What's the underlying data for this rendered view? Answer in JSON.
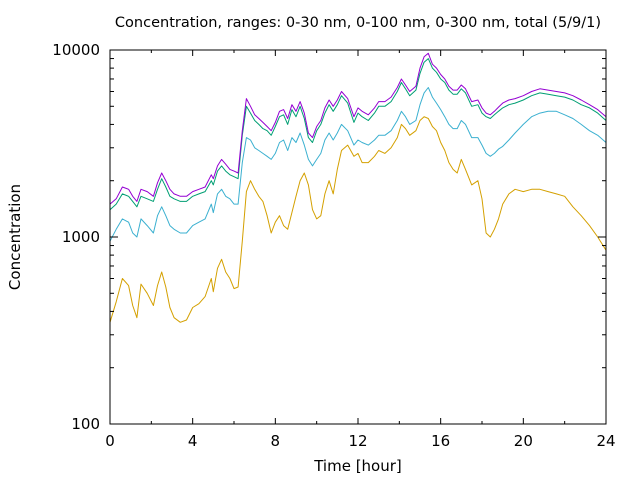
{
  "chart_data": {
    "type": "line",
    "title": "Concentration, ranges: 0-30 nm, 0-100 nm, 0-300 nm, total (5/9/1)",
    "xlabel": "Time [hour]",
    "ylabel": "Concentration",
    "xlim": [
      0,
      24
    ],
    "ylim": [
      100,
      10000
    ],
    "yscale": "log",
    "grid": false,
    "legend": "none",
    "x_ticks": [
      0,
      4,
      8,
      12,
      16,
      20,
      24
    ],
    "x_tick_labels": [
      "0",
      "4",
      "8",
      "12",
      "16",
      "20",
      "24"
    ],
    "y_ticks": [
      100,
      1000,
      10000
    ],
    "y_tick_labels": [
      "100",
      "1000",
      "10000"
    ],
    "series": [
      {
        "color": "#d4a000",
        "x": [
          0,
          0.3,
          0.6,
          0.9,
          1.1,
          1.3,
          1.5,
          1.8,
          2.1,
          2.3,
          2.5,
          2.7,
          2.9,
          3.1,
          3.4,
          3.7,
          4.0,
          4.3,
          4.6,
          4.9,
          5.0,
          5.2,
          5.4,
          5.6,
          5.8,
          6.0,
          6.2,
          6.4,
          6.6,
          6.8,
          7.0,
          7.2,
          7.4,
          7.6,
          7.8,
          8.0,
          8.2,
          8.4,
          8.6,
          8.8,
          9.0,
          9.2,
          9.4,
          9.6,
          9.8,
          10.0,
          10.2,
          10.4,
          10.6,
          10.8,
          11.0,
          11.2,
          11.5,
          11.8,
          12.0,
          12.2,
          12.5,
          12.8,
          13.0,
          13.3,
          13.6,
          13.9,
          14.1,
          14.3,
          14.5,
          14.8,
          15.0,
          15.2,
          15.4,
          15.6,
          15.8,
          16.0,
          16.2,
          16.4,
          16.6,
          16.8,
          17.0,
          17.2,
          17.5,
          17.8,
          18.0,
          18.2,
          18.4,
          18.6,
          18.8,
          19.0,
          19.3,
          19.6,
          20.0,
          20.4,
          20.8,
          21.2,
          21.6,
          22.0,
          22.4,
          22.8,
          23.2,
          23.6,
          24.0
        ],
        "y": [
          350,
          450,
          600,
          550,
          430,
          370,
          560,
          500,
          430,
          550,
          650,
          540,
          420,
          370,
          350,
          360,
          420,
          440,
          480,
          600,
          510,
          680,
          760,
          650,
          600,
          530,
          540,
          950,
          1750,
          2000,
          1800,
          1650,
          1550,
          1300,
          1050,
          1200,
          1300,
          1150,
          1100,
          1350,
          1650,
          2000,
          2200,
          1900,
          1400,
          1250,
          1300,
          1700,
          2000,
          1700,
          2300,
          2900,
          3100,
          2700,
          2800,
          2500,
          2500,
          2700,
          2900,
          2800,
          3000,
          3400,
          4000,
          3800,
          3500,
          3700,
          4200,
          4400,
          4300,
          3900,
          3700,
          3200,
          2900,
          2500,
          2300,
          2200,
          2600,
          2300,
          1900,
          2000,
          1600,
          1050,
          1000,
          1100,
          1250,
          1500,
          1700,
          1800,
          1750,
          1800,
          1800,
          1750,
          1700,
          1650,
          1450,
          1300,
          1150,
          1000,
          850
        ]
      },
      {
        "color": "#3bb0d0",
        "x": [
          0,
          0.3,
          0.6,
          0.9,
          1.1,
          1.3,
          1.5,
          1.8,
          2.1,
          2.3,
          2.5,
          2.7,
          2.9,
          3.1,
          3.4,
          3.7,
          4.0,
          4.3,
          4.6,
          4.9,
          5.0,
          5.2,
          5.4,
          5.6,
          5.8,
          6.0,
          6.2,
          6.4,
          6.6,
          6.8,
          7.0,
          7.2,
          7.4,
          7.6,
          7.8,
          8.0,
          8.2,
          8.4,
          8.6,
          8.8,
          9.0,
          9.2,
          9.4,
          9.6,
          9.8,
          10.0,
          10.2,
          10.4,
          10.6,
          10.8,
          11.0,
          11.2,
          11.5,
          11.8,
          12.0,
          12.2,
          12.5,
          12.8,
          13.0,
          13.3,
          13.6,
          13.9,
          14.1,
          14.3,
          14.5,
          14.8,
          15.0,
          15.2,
          15.4,
          15.6,
          15.8,
          16.0,
          16.2,
          16.4,
          16.6,
          16.8,
          17.0,
          17.2,
          17.5,
          17.8,
          18.0,
          18.2,
          18.4,
          18.6,
          18.8,
          19.0,
          19.3,
          19.6,
          20.0,
          20.4,
          20.8,
          21.2,
          21.6,
          22.0,
          22.4,
          22.8,
          23.2,
          23.6,
          24.0
        ],
        "y": [
          950,
          1100,
          1250,
          1200,
          1050,
          1000,
          1250,
          1150,
          1050,
          1300,
          1450,
          1300,
          1150,
          1100,
          1050,
          1050,
          1150,
          1200,
          1250,
          1500,
          1350,
          1700,
          1800,
          1650,
          1600,
          1500,
          1500,
          2500,
          3400,
          3300,
          3000,
          2900,
          2800,
          2700,
          2600,
          2800,
          3200,
          3300,
          2900,
          3400,
          3200,
          3600,
          3100,
          2600,
          2400,
          2600,
          2800,
          3300,
          3600,
          3300,
          3600,
          4000,
          3700,
          3100,
          3300,
          3200,
          3100,
          3300,
          3500,
          3500,
          3700,
          4200,
          4700,
          4400,
          4000,
          4200,
          5100,
          5900,
          6300,
          5600,
          5200,
          4800,
          4400,
          4000,
          3800,
          3800,
          4200,
          4000,
          3400,
          3400,
          3100,
          2800,
          2700,
          2800,
          2950,
          3050,
          3300,
          3600,
          4000,
          4400,
          4600,
          4700,
          4700,
          4500,
          4300,
          4000,
          3700,
          3500,
          3200
        ]
      },
      {
        "color": "#009e73",
        "x": [
          0,
          0.3,
          0.6,
          0.9,
          1.1,
          1.3,
          1.5,
          1.8,
          2.1,
          2.3,
          2.5,
          2.7,
          2.9,
          3.1,
          3.4,
          3.7,
          4.0,
          4.3,
          4.6,
          4.9,
          5.0,
          5.2,
          5.4,
          5.6,
          5.8,
          6.0,
          6.2,
          6.4,
          6.6,
          6.8,
          7.0,
          7.2,
          7.4,
          7.6,
          7.8,
          8.0,
          8.2,
          8.4,
          8.6,
          8.8,
          9.0,
          9.2,
          9.4,
          9.6,
          9.8,
          10.0,
          10.2,
          10.4,
          10.6,
          10.8,
          11.0,
          11.2,
          11.5,
          11.8,
          12.0,
          12.2,
          12.5,
          12.8,
          13.0,
          13.3,
          13.6,
          13.9,
          14.1,
          14.3,
          14.5,
          14.8,
          15.0,
          15.2,
          15.4,
          15.6,
          15.8,
          16.0,
          16.2,
          16.4,
          16.6,
          16.8,
          17.0,
          17.2,
          17.5,
          17.8,
          18.0,
          18.2,
          18.4,
          18.6,
          18.8,
          19.0,
          19.3,
          19.6,
          20.0,
          20.4,
          20.8,
          21.2,
          21.6,
          22.0,
          22.4,
          22.8,
          23.2,
          23.6,
          24.0
        ],
        "y": [
          1400,
          1500,
          1700,
          1650,
          1550,
          1450,
          1650,
          1600,
          1550,
          1800,
          2050,
          1850,
          1650,
          1600,
          1550,
          1550,
          1650,
          1700,
          1750,
          2000,
          1900,
          2250,
          2400,
          2250,
          2150,
          2100,
          2050,
          3500,
          5000,
          4600,
          4200,
          4000,
          3800,
          3700,
          3500,
          3900,
          4400,
          4500,
          4000,
          4800,
          4400,
          5000,
          4300,
          3400,
          3200,
          3700,
          4000,
          4600,
          5100,
          4700,
          5100,
          5700,
          5200,
          4100,
          4600,
          4400,
          4200,
          4600,
          5000,
          5000,
          5300,
          6000,
          6700,
          6200,
          5700,
          6100,
          7500,
          8600,
          9000,
          8000,
          7600,
          7000,
          6700,
          6100,
          5800,
          5800,
          6200,
          5900,
          5000,
          5100,
          4600,
          4400,
          4300,
          4500,
          4700,
          4900,
          5100,
          5200,
          5400,
          5700,
          5900,
          5800,
          5700,
          5600,
          5400,
          5100,
          4900,
          4600,
          4200
        ]
      },
      {
        "color": "#9400d3",
        "x": [
          0,
          0.3,
          0.6,
          0.9,
          1.1,
          1.3,
          1.5,
          1.8,
          2.1,
          2.3,
          2.5,
          2.7,
          2.9,
          3.1,
          3.4,
          3.7,
          4.0,
          4.3,
          4.6,
          4.9,
          5.0,
          5.2,
          5.4,
          5.6,
          5.8,
          6.0,
          6.2,
          6.4,
          6.6,
          6.8,
          7.0,
          7.2,
          7.4,
          7.6,
          7.8,
          8.0,
          8.2,
          8.4,
          8.6,
          8.8,
          9.0,
          9.2,
          9.4,
          9.6,
          9.8,
          10.0,
          10.2,
          10.4,
          10.6,
          10.8,
          11.0,
          11.2,
          11.5,
          11.8,
          12.0,
          12.2,
          12.5,
          12.8,
          13.0,
          13.3,
          13.6,
          13.9,
          14.1,
          14.3,
          14.5,
          14.8,
          15.0,
          15.2,
          15.4,
          15.6,
          15.8,
          16.0,
          16.2,
          16.4,
          16.6,
          16.8,
          17.0,
          17.2,
          17.5,
          17.8,
          18.0,
          18.2,
          18.4,
          18.6,
          18.8,
          19.0,
          19.3,
          19.6,
          20.0,
          20.4,
          20.8,
          21.2,
          21.6,
          22.0,
          22.4,
          22.8,
          23.2,
          23.6,
          24.0
        ],
        "y": [
          1500,
          1600,
          1850,
          1800,
          1650,
          1550,
          1800,
          1750,
          1650,
          1950,
          2200,
          2000,
          1800,
          1700,
          1650,
          1650,
          1750,
          1800,
          1850,
          2150,
          2050,
          2400,
          2600,
          2450,
          2300,
          2250,
          2200,
          3700,
          5500,
          5000,
          4500,
          4300,
          4100,
          3900,
          3700,
          4100,
          4700,
          4800,
          4300,
          5100,
          4700,
          5300,
          4600,
          3600,
          3400,
          3900,
          4200,
          4900,
          5400,
          5000,
          5400,
          6000,
          5500,
          4400,
          4900,
          4700,
          4500,
          4900,
          5300,
          5300,
          5600,
          6300,
          7000,
          6500,
          6000,
          6400,
          8000,
          9200,
          9600,
          8400,
          8000,
          7400,
          7000,
          6400,
          6100,
          6100,
          6500,
          6200,
          5300,
          5400,
          4900,
          4600,
          4500,
          4700,
          4950,
          5200,
          5400,
          5500,
          5700,
          6000,
          6200,
          6100,
          6000,
          5900,
          5700,
          5400,
          5100,
          4800,
          4400
        ]
      }
    ]
  }
}
